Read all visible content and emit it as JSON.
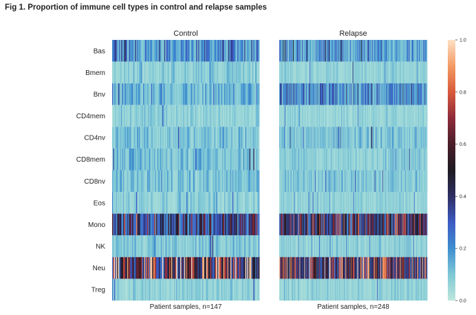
{
  "figure": {
    "title": "Fig 1. Proportion of immune cell types in control and relapse samples"
  },
  "chart_data": {
    "type": "heatmap",
    "title": "Fig 1. Proportion of immune cell types in control and relapse samples",
    "row_labels": [
      "Bas",
      "Bmem",
      "Bnv",
      "CD4mem",
      "CD4nv",
      "CD8mem",
      "CD8nv",
      "Eos",
      "Mono",
      "NK",
      "Neu",
      "Treg"
    ],
    "value_range": [
      0.0,
      1.0
    ],
    "colormap": "icefire",
    "panels": [
      {
        "title": "Control",
        "xlabel": "Patient samples, n=147",
        "n": 147,
        "row_typical_values": [
          0.2,
          0.08,
          0.14,
          0.07,
          0.1,
          0.11,
          0.1,
          0.08,
          0.4,
          0.09,
          0.58,
          0.07
        ]
      },
      {
        "title": "Relapse",
        "xlabel": "Patient samples, n=248",
        "n": 248,
        "row_typical_values": [
          0.18,
          0.07,
          0.2,
          0.06,
          0.1,
          0.08,
          0.09,
          0.07,
          0.48,
          0.07,
          0.55,
          0.07
        ]
      }
    ],
    "colorbar": {
      "ticks": [
        "0.0",
        "0.2",
        "0.4",
        "0.6",
        "0.8",
        "1.0"
      ]
    }
  }
}
